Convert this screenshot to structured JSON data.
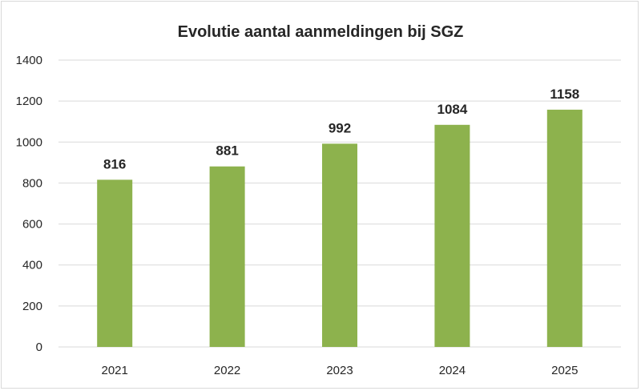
{
  "chart_data": {
    "type": "bar",
    "title": "Evolutie aantal aanmeldingen bij SGZ",
    "xlabel": "",
    "ylabel": "",
    "categories": [
      "2021",
      "2022",
      "2023",
      "2024",
      "2025"
    ],
    "values": [
      816,
      881,
      992,
      1084,
      1158
    ],
    "data_labels": [
      "816",
      "881",
      "992",
      "1084",
      "1158"
    ],
    "ylim": [
      0,
      1400
    ],
    "yticks": [
      0,
      200,
      400,
      600,
      800,
      1000,
      1200,
      1400
    ],
    "ytick_labels": [
      "0",
      "200",
      "400",
      "600",
      "800",
      "1000",
      "1200",
      "1400"
    ],
    "grid": true,
    "legend": "none",
    "bar_color": "#8db24d",
    "grid_color": "#d9d9d9"
  }
}
